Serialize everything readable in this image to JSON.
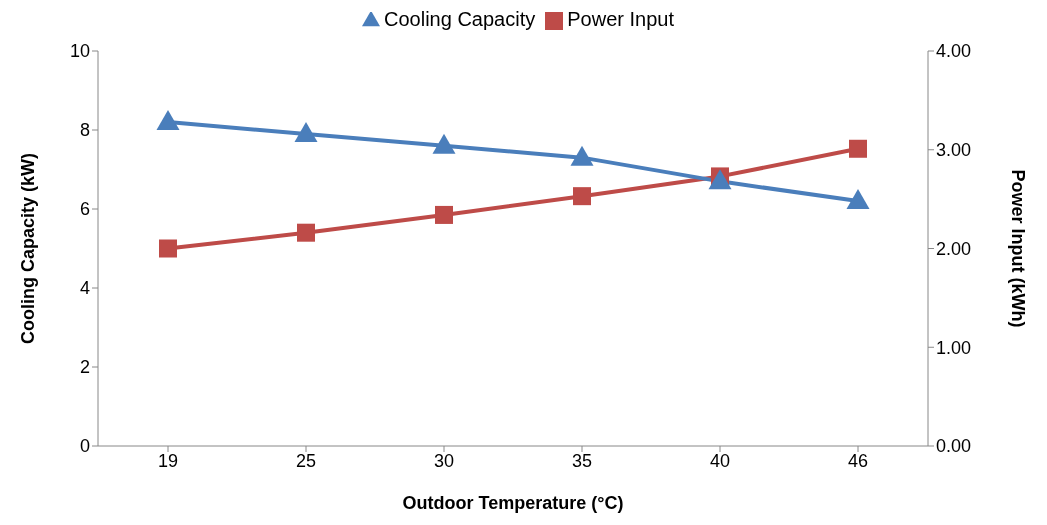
{
  "chart_data": {
    "type": "line",
    "xlabel": "Outdoor Temperature (°C)",
    "ylabel": "Cooling Capacity (kW)",
    "y2label": "Power Input (kWh)",
    "categories": [
      "19",
      "25",
      "30",
      "35",
      "40",
      "46"
    ],
    "series": [
      {
        "name": "Cooling Capacity",
        "color": "#4a7ebb",
        "marker": "triangle",
        "values": [
          8.2,
          7.9,
          7.6,
          7.3,
          6.7,
          6.2
        ]
      },
      {
        "name": "Power Input",
        "color": "#be4b48",
        "marker": "square",
        "axis": "y2",
        "values": [
          2.0,
          2.16,
          2.34,
          2.53,
          2.73,
          3.01
        ]
      }
    ],
    "ylim": [
      0,
      10
    ],
    "yticks": [
      0,
      2,
      4,
      6,
      8,
      10
    ],
    "y2lim": [
      0,
      4
    ],
    "y2ticks": [
      {
        "value": 0,
        "label": "0.00"
      },
      {
        "value": 1,
        "label": "1.00"
      },
      {
        "value": 2,
        "label": "2.00"
      },
      {
        "value": 3,
        "label": "3.00"
      },
      {
        "value": 4,
        "label": "4.00"
      }
    ],
    "grid": false,
    "legend": "top",
    "line_style": "solid"
  }
}
